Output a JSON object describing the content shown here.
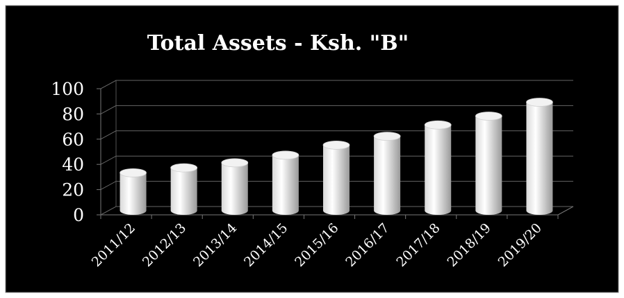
{
  "chart_data": {
    "type": "bar",
    "title": "Total Assets - Ksh. \"B\"",
    "categories": [
      "2011/12",
      "2012/13",
      "2013/14",
      "2014/15",
      "2015/16",
      "2016/17",
      "2017/18",
      "2018/19",
      "2019/20"
    ],
    "values": [
      30,
      34,
      38,
      44,
      52,
      59,
      68,
      75,
      86
    ],
    "color": "#ffffff",
    "ylim": [
      0,
      100
    ],
    "yticks": [
      0,
      20,
      40,
      60,
      80,
      100
    ],
    "grid": true
  }
}
